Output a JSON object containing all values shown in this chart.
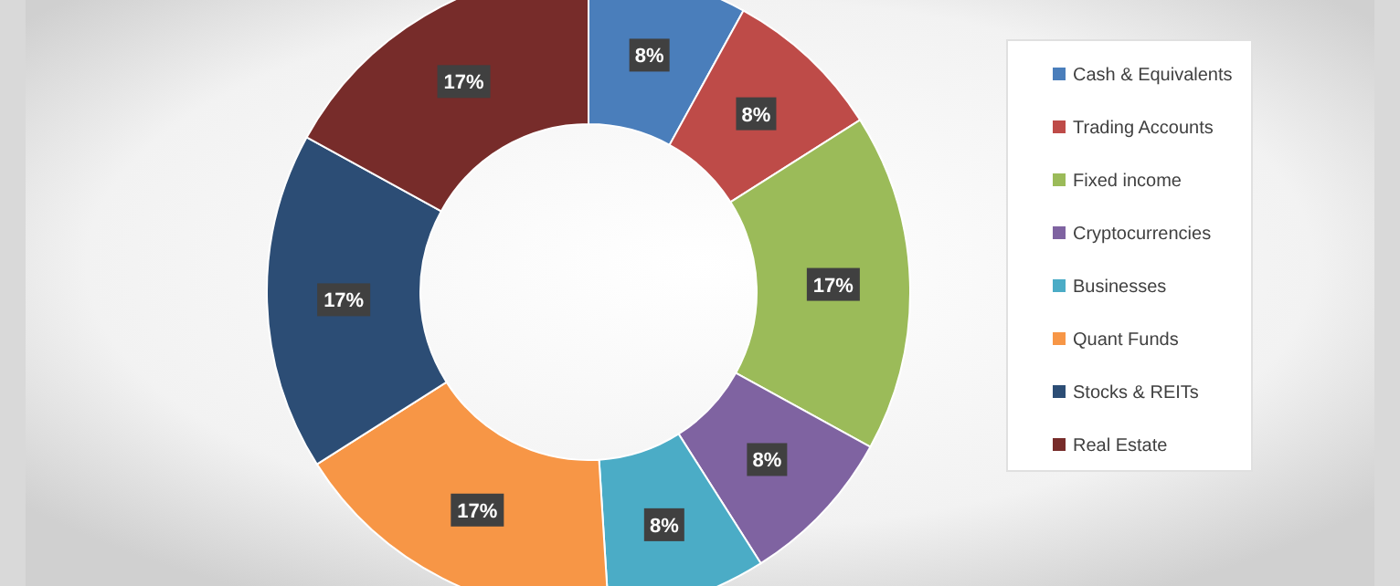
{
  "chart_data": {
    "type": "donut",
    "categories": [
      "Cash & Equivalents",
      "Trading Accounts",
      "Fixed income",
      "Cryptocurrencies",
      "Businesses",
      "Quant Funds",
      "Stocks & REITs",
      "Real Estate"
    ],
    "values": [
      8,
      8,
      17,
      8,
      8,
      17,
      17,
      17
    ],
    "value_labels": [
      "8%",
      "8%",
      "17%",
      "8%",
      "8%",
      "17%",
      "17%",
      "17%"
    ],
    "colors": [
      "#4a7ebb",
      "#be4b48",
      "#9bbb59",
      "#7f63a1",
      "#4bacc6",
      "#f79646",
      "#2c4d75",
      "#772c2a"
    ],
    "legend": "right"
  }
}
